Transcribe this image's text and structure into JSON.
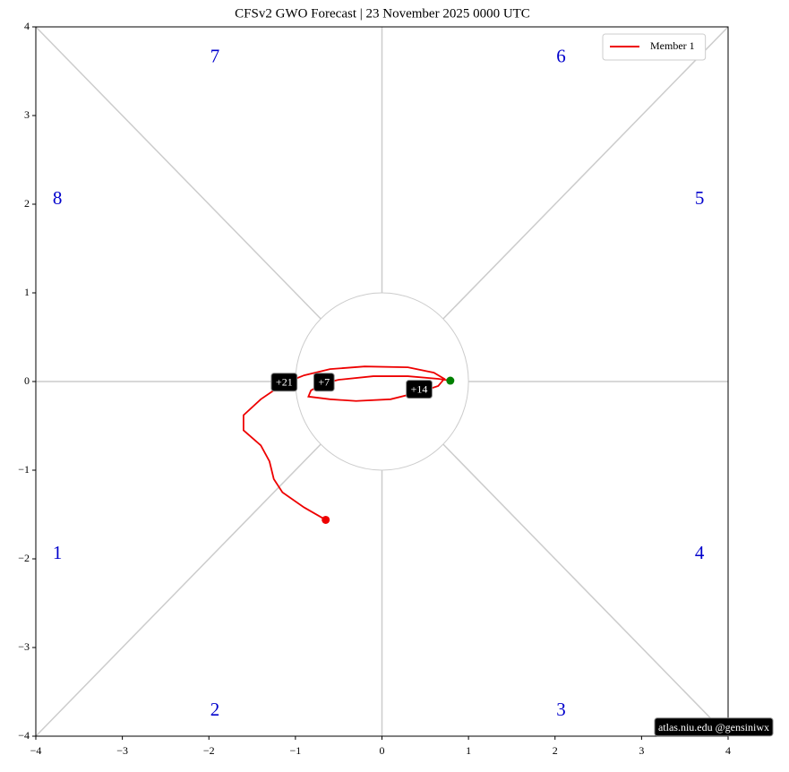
{
  "chart_data": {
    "type": "line",
    "title": "CFSv2 GWO Forecast   |   23  November  2025 0000 UTC",
    "x": [
      0.79,
      0.65,
      0.3,
      -0.1,
      -0.5,
      -0.67,
      -0.82,
      -0.85,
      -0.6,
      -0.3,
      0.1,
      0.43,
      0.65,
      0.72,
      0.6,
      0.3,
      -0.2,
      -0.6,
      -0.9,
      -1.13,
      -1.4,
      -1.6,
      -1.6,
      -1.4,
      -1.3,
      -1.25,
      -1.15,
      -0.9,
      -0.65
    ],
    "series": [
      {
        "name": "Member 1",
        "color": "#ee0000",
        "values": [
          0.01,
          0.03,
          0.06,
          0.06,
          0.02,
          -0.02,
          -0.1,
          -0.17,
          -0.2,
          -0.22,
          -0.2,
          -0.12,
          -0.05,
          0.03,
          0.1,
          0.16,
          0.17,
          0.14,
          0.07,
          -0.02,
          -0.2,
          -0.38,
          -0.55,
          -0.72,
          -0.9,
          -1.1,
          -1.25,
          -1.42,
          -1.56
        ]
      }
    ],
    "start_color": "#008000",
    "xlim": [
      -4,
      4
    ],
    "ylim": [
      -4,
      4
    ],
    "xticks": [
      {
        "value": -4,
        "label": "−4"
      },
      {
        "value": -3,
        "label": "−3"
      },
      {
        "value": -2,
        "label": "−2"
      },
      {
        "value": -1,
        "label": "−1"
      },
      0,
      1,
      2,
      3,
      4
    ],
    "yticks": [
      {
        "value": -4,
        "label": "−4"
      },
      {
        "value": -3,
        "label": "−3"
      },
      {
        "value": -2,
        "label": "−2"
      },
      {
        "value": -1,
        "label": "−1"
      },
      0,
      1,
      2,
      3,
      4
    ],
    "annotations": [
      {
        "text": "+7",
        "x": -0.67,
        "y": -0.02
      },
      {
        "text": "+14",
        "x": 0.43,
        "y": -0.1
      },
      {
        "text": "+21",
        "x": -1.13,
        "y": -0.02
      }
    ],
    "phase_labels": [
      {
        "text": "1",
        "x": -3.75,
        "y": -1.95
      },
      {
        "text": "2",
        "x": -1.93,
        "y": -3.72
      },
      {
        "text": "3",
        "x": 2.07,
        "y": -3.72
      },
      {
        "text": "4",
        "x": 3.67,
        "y": -1.95
      },
      {
        "text": "5",
        "x": 3.67,
        "y": 2.05
      },
      {
        "text": "6",
        "x": 2.07,
        "y": 3.65
      },
      {
        "text": "7",
        "x": -1.93,
        "y": 3.65
      },
      {
        "text": "8",
        "x": -3.75,
        "y": 2.05
      }
    ],
    "legend": "upper right",
    "credit": "atlas.niu.edu  @gensiniwx"
  }
}
